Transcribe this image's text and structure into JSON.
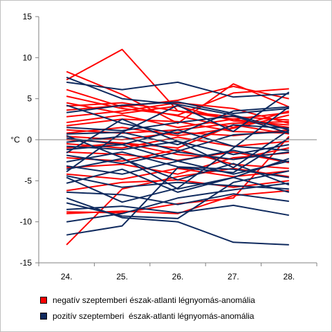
{
  "chart_data": {
    "type": "line",
    "ylabel": "°C",
    "categories": [
      "24.",
      "25.",
      "26.",
      "27.",
      "28."
    ],
    "ylim": [
      -15,
      15
    ],
    "yticks": [
      -15,
      -10,
      -5,
      0,
      5,
      10,
      15
    ],
    "grid": false,
    "legend_position": "bottom",
    "groups": [
      {
        "name": "negatív szeptemberi észak-atlanti légnyomás-anomália",
        "color": "#ff0000",
        "lines": [
          [
            7.3,
            11.0,
            3.5,
            2.5,
            3.3
          ],
          [
            8.3,
            5.5,
            2.0,
            6.8,
            4.0
          ],
          [
            6.1,
            4.0,
            4.8,
            6.5,
            5.0
          ],
          [
            5.3,
            3.8,
            3.0,
            5.7,
            6.2
          ],
          [
            4.5,
            3.2,
            4.1,
            2.3,
            1.8
          ],
          [
            4.1,
            4.5,
            3.5,
            2.8,
            2.4
          ],
          [
            3.6,
            4.2,
            2.9,
            1.5,
            3.5
          ],
          [
            2.8,
            3.5,
            4.5,
            3.8,
            2.0
          ],
          [
            2.1,
            3.0,
            1.5,
            2.5,
            1.5
          ],
          [
            1.7,
            2.5,
            2.2,
            1.0,
            0.8
          ],
          [
            1.2,
            0.8,
            1.2,
            2.0,
            2.2
          ],
          [
            0.8,
            1.5,
            0.5,
            1.4,
            3.0
          ],
          [
            0.4,
            0.0,
            0.9,
            0.5,
            1.2
          ],
          [
            0.0,
            -0.4,
            -1.0,
            1.8,
            0.7
          ],
          [
            -0.5,
            -1.0,
            0.3,
            -0.8,
            -0.2
          ],
          [
            -1.0,
            -0.4,
            -1.8,
            -2.4,
            -1.0
          ],
          [
            -1.5,
            -1.8,
            -2.5,
            -1.5,
            -2.8
          ],
          [
            -2.2,
            -2.6,
            -1.2,
            -3.0,
            -3.5
          ],
          [
            -3.4,
            -3.0,
            -4.2,
            -2.2,
            -1.6
          ],
          [
            -4.2,
            -4.8,
            -3.5,
            -4.5,
            -3.8
          ],
          [
            -6.2,
            -5.2,
            -4.9,
            -5.8,
            -5.0
          ],
          [
            -8.8,
            -8.9,
            -7.8,
            -7.1,
            0.4
          ],
          [
            -9.0,
            -8.7,
            -9.0,
            -6.8,
            -6.2
          ],
          [
            -12.8,
            -6.0,
            -4.5,
            -3.5,
            -4.5
          ]
        ]
      },
      {
        "name": "pozitív szeptemberi  észak-atlanti légnyomás-anomália",
        "color": "#0f2a5e",
        "lines": [
          [
            7.6,
            5.0,
            4.3,
            3.0,
            1.2
          ],
          [
            7.0,
            6.1,
            7.0,
            5.2,
            5.6
          ],
          [
            4.2,
            2.0,
            0.7,
            3.5,
            4.0
          ],
          [
            3.3,
            4.2,
            4.6,
            3.2,
            3.8
          ],
          [
            1.5,
            1.1,
            2.1,
            2.9,
            0.8
          ],
          [
            0.7,
            0.9,
            -0.6,
            1.8,
            1.4
          ],
          [
            0.2,
            -0.6,
            1.2,
            -0.8,
            -1.3
          ],
          [
            -0.3,
            0.4,
            -1.4,
            0.6,
            1.0
          ],
          [
            -0.8,
            -1.2,
            -0.2,
            -1.8,
            -0.6
          ],
          [
            -1.2,
            -0.6,
            -2.6,
            -1.3,
            -2.7
          ],
          [
            -1.9,
            -2.9,
            -1.5,
            -2.4,
            -1.5
          ],
          [
            -2.7,
            -1.5,
            -3.3,
            -3.6,
            -4.6
          ],
          [
            -3.2,
            -4.2,
            -2.6,
            -4.2,
            -2.6
          ],
          [
            -3.6,
            -2.3,
            -4.9,
            -2.9,
            -5.5
          ],
          [
            -4.4,
            -5.8,
            -5.2,
            -5.6,
            -6.0
          ],
          [
            -5.3,
            -3.6,
            -6.4,
            -4.6,
            -6.4
          ],
          [
            -6.4,
            -6.7,
            -7.9,
            -6.6,
            -7.5
          ],
          [
            -7.7,
            -9.3,
            -9.6,
            -5.2,
            -3.8
          ],
          [
            -8.5,
            -8.1,
            -8.9,
            -8.0,
            -9.2
          ],
          [
            -10.0,
            -9.0,
            -7.1,
            -6.1,
            -5.3
          ],
          [
            -11.6,
            -10.5,
            -3.4,
            -4.0,
            0.2
          ],
          [
            -7.1,
            -9.5,
            -10.0,
            -12.5,
            -12.8
          ],
          [
            -4.6,
            -7.6,
            -5.9,
            -1.0,
            4.0
          ],
          [
            -1.6,
            2.5,
            -0.2,
            -3.4,
            1.2
          ],
          [
            0.5,
            -2.2,
            -6.0,
            -4.6,
            -2.3
          ],
          [
            -3.9,
            0.9,
            4.2,
            1.0,
            5.8
          ]
        ]
      }
    ]
  }
}
